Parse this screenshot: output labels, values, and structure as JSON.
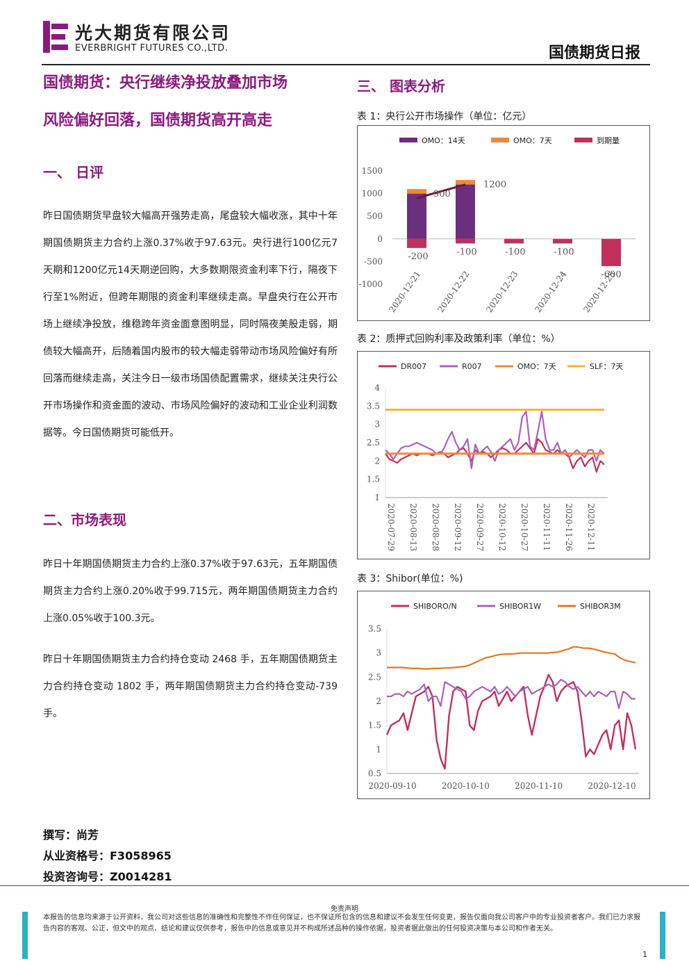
{
  "header": {
    "company_cn": "光大期货有限公司",
    "company_en": "EVERBRIGHT FUTURES CO.,LTD.",
    "report_title": "国债期货日报"
  },
  "article": {
    "title_line1": "国债期货：央行继续净投放叠加市场",
    "title_line2": "风险偏好回落，国债期货高开高走",
    "sec1_title": "一、 日评",
    "sec1_body": "昨日国债期货早盘较大幅高开强势走高，尾盘较大幅收涨，其中十年期国债期货主力合约上涨0.37%收于97.63元。央行进行100亿元7天期和1200亿元14天期逆回购，大多数期限资金利率下行，隔夜下行至1%附近，但跨年期限的资金利率继续走高。早盘央行在公开市场上继续净投放，维稳跨年资金面意图明显，同时隔夜美股走弱，期债较大幅高开，后随着国内股市的较大幅走弱带动市场风险偏好有所回落而继续走高，关注今日一级市场国债配置需求，继续关注央行公开市场操作和资金面的波动、市场风险偏好的波动和工业企业利润数据等。今日国债期货可能低开。",
    "sec2_title": "二、市场表现",
    "sec2_p1": "昨日十年期国债期货主力合约上涨0.37%收于97.63元，五年期国债期货主力合约上涨0.20%收于99.715元，两年期国债期货主力合约上涨0.05%收于100.3元。",
    "sec2_p2": "昨日十年期国债期货主力合约持仓变动 2468 手，五年期国债期货主力合约持仓变动 1802 手，两年期国债期货主力合约持仓变动-739手。",
    "sec3_title": "三、 图表分析"
  },
  "captions": {
    "chart1": "表 1：央行公开市场操作（单位：亿元）",
    "chart2": "表 2：质押式回购利率及政策利率（单位：%）",
    "chart3": "表 3：Shibor(单位：%)"
  },
  "author": {
    "writer": "撰写：尚芳",
    "license": "从业资格号：F3058965",
    "advisory": "投资咨询号：Z0014281"
  },
  "footer": {
    "disclaimer_title": "免责声明",
    "disclaimer": "本报告的信息均来源于公开资料，我公司对这些信息的准确性和完整性不作任何保证，也不保证所包含的信息和建议不会发生任何变更，报告仅面向我公司客户中的专业投资者客户。我们已力求报告内容的客观、公正，但文中的观点、结论和建议仅供参考，报告中的信息或意见并不构成所述品种的操作依据，投资者据此做出的任何投资决策与本公司和作者无关。",
    "page_number": "1"
  },
  "colors": {
    "accent": "#8b1a7e",
    "omo14": "#6b2f7e",
    "omo7": "#f0883a",
    "maturity": "#c0305a",
    "dr007": "#c0305a",
    "r007": "#a860c0",
    "slf": "#f2b431",
    "shibor_3m": "#e07820"
  },
  "chart_data": [
    {
      "type": "bar",
      "categories": [
        "2020-12-21",
        "2020-12-22",
        "2020-12-23",
        "2020-12-24",
        "2020-12-25"
      ],
      "series": [
        {
          "name": "OMO：14天",
          "values": [
            1000,
            1200,
            0,
            0,
            0
          ]
        },
        {
          "name": "OMO：7天",
          "values": [
            100,
            100,
            0,
            0,
            0
          ]
        },
        {
          "name": "到期量",
          "values": [
            -200,
            -100,
            -100,
            -100,
            -600
          ]
        }
      ],
      "line_labels": [
        "900",
        "1200"
      ],
      "bar_labels": [
        "-200",
        "-100",
        "-100",
        "-100",
        "-600"
      ],
      "ylim": [
        -1000,
        1500
      ],
      "yticks": [
        "1500",
        "1000",
        "500",
        "0",
        "-500",
        "-1000"
      ],
      "legend": "top"
    },
    {
      "type": "line",
      "xticks": [
        "2020-07-29",
        "2020-08-13",
        "2020-08-28",
        "2020-09-12",
        "2020-09-27",
        "2020-10-12",
        "2020-10-27",
        "2020-11-11",
        "2020-11-26",
        "2020-12-11"
      ],
      "ylim": [
        1,
        4
      ],
      "yticks": [
        "4",
        "3.5",
        "3",
        "2.5",
        "2",
        "1.5",
        "1"
      ],
      "legend": "top",
      "series": [
        {
          "name": "DR007",
          "values": [
            2.2,
            2.05,
            2.0,
            1.95,
            2.05,
            2.1,
            2.15,
            2.2,
            2.15,
            2.2,
            2.2,
            2.2,
            2.15,
            2.2,
            2.25,
            2.2,
            2.1,
            2.15,
            2.2,
            2.3,
            2.35,
            2.2,
            2.0,
            2.3,
            2.2,
            2.25,
            2.2,
            2.1,
            2.2,
            2.3,
            2.35,
            2.3,
            2.2,
            2.2,
            2.3,
            2.4,
            2.5,
            2.35,
            2.2,
            2.6,
            2.5,
            2.3,
            2.25,
            2.2,
            2.3,
            2.2,
            2.2,
            2.1,
            1.8,
            2.0,
            2.1,
            1.85,
            2.0,
            2.1,
            1.7,
            2.0,
            1.9
          ]
        },
        {
          "name": "R007",
          "values": [
            2.3,
            2.2,
            2.05,
            2.2,
            2.35,
            2.4,
            2.4,
            2.45,
            2.5,
            2.45,
            2.4,
            2.35,
            2.3,
            2.2,
            2.2,
            2.35,
            2.6,
            2.8,
            2.5,
            2.3,
            2.4,
            2.6,
            1.8,
            2.45,
            2.2,
            2.3,
            2.4,
            2.25,
            2.0,
            2.3,
            2.4,
            2.5,
            2.6,
            2.3,
            2.5,
            3.2,
            3.35,
            2.4,
            2.3,
            2.8,
            3.35,
            2.6,
            2.3,
            2.3,
            2.5,
            2.2,
            2.3,
            2.1,
            2.2,
            2.3,
            2.2,
            2.1,
            2.3,
            2.3,
            2.0,
            2.3,
            2.2
          ]
        },
        {
          "name": "OMO：7天",
          "values": [
            2.2,
            2.2
          ]
        },
        {
          "name": "SLF：7天",
          "values": [
            3.4,
            3.4
          ]
        }
      ]
    },
    {
      "type": "line",
      "xticks": [
        "2020-09-10",
        "2020-10-10",
        "2020-11-10",
        "2020-12-10"
      ],
      "ylim": [
        0.5,
        3.5
      ],
      "yticks": [
        "3.5",
        "3",
        "2.5",
        "2",
        "1.5",
        "1",
        "0.5"
      ],
      "legend": "top",
      "series": [
        {
          "name": "SHIBORO/N",
          "values": [
            1.3,
            1.5,
            1.55,
            1.6,
            1.75,
            1.4,
            1.75,
            2.1,
            2.15,
            2.2,
            2.3,
            2.1,
            1.2,
            0.8,
            0.6,
            1.7,
            2.2,
            2.3,
            2.25,
            2.2,
            1.5,
            1.4,
            1.8,
            2.0,
            2.05,
            2.1,
            2.2,
            1.9,
            2.05,
            2.2,
            2.0,
            2.1,
            2.2,
            2.3,
            1.7,
            1.3,
            1.7,
            2.1,
            2.3,
            2.55,
            2.4,
            2.0,
            2.2,
            2.3,
            2.35,
            2.4,
            2.2,
            1.6,
            0.85,
            1.0,
            0.9,
            1.1,
            1.3,
            1.4,
            1.0,
            1.5,
            1.6,
            1.0,
            1.75,
            1.5,
            1.0
          ]
        },
        {
          "name": "SHIBOR1W",
          "values": [
            2.1,
            2.1,
            2.15,
            2.15,
            2.1,
            2.2,
            2.15,
            2.2,
            2.25,
            2.35,
            2.0,
            2.1,
            2.1,
            1.9,
            2.4,
            2.35,
            2.3,
            2.25,
            2.2,
            2.05,
            2.1,
            2.2,
            2.25,
            2.3,
            2.25,
            2.2,
            2.3,
            2.15,
            2.2,
            2.3,
            2.2,
            2.1,
            2.2,
            2.25,
            2.3,
            2.15,
            2.2,
            2.25,
            2.3,
            2.35,
            2.3,
            2.35,
            2.45,
            2.4,
            2.3,
            2.25,
            2.3,
            2.2,
            2.1,
            2.2,
            2.1,
            2.2,
            2.15,
            2.1,
            2.2,
            2.2,
            1.85,
            2.2,
            2.15,
            2.05,
            2.05
          ]
        },
        {
          "name": "SHIBOR3M",
          "values": [
            2.7,
            2.7,
            2.7,
            2.7,
            2.69,
            2.68,
            2.68,
            2.67,
            2.67,
            2.68,
            2.68,
            2.69,
            2.69,
            2.7,
            2.71,
            2.72,
            2.75,
            2.8,
            2.85,
            2.9,
            2.92,
            2.95,
            2.97,
            2.98,
            2.98,
            2.99,
            3.0,
            3.0,
            3.0,
            3.0,
            3.0,
            3.0,
            3.01,
            3.02,
            3.05,
            3.08,
            3.13,
            3.12,
            3.1,
            3.1,
            3.08,
            3.05,
            3.02,
            3.0,
            2.98,
            2.9,
            2.85,
            2.82,
            2.8
          ]
        }
      ]
    }
  ]
}
